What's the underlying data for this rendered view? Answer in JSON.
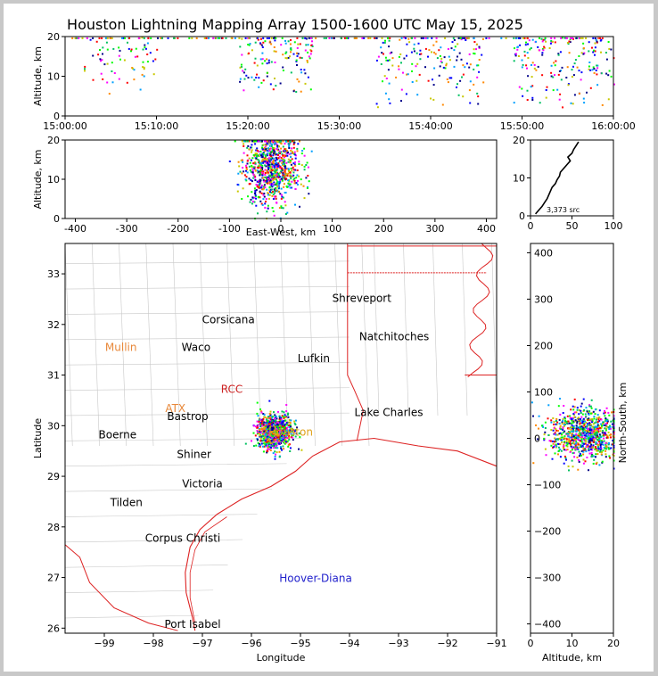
{
  "title": "Houston Lightning Mapping Array 1500-1600 UTC May 15, 2025",
  "chart_data": [
    {
      "id": "time_altitude",
      "type": "scatter",
      "ylabel": "Altitude, km",
      "xlim": [
        "15:00:00",
        "16:00:00"
      ],
      "ylim": [
        0,
        20
      ],
      "x_ticks": [
        "15:00:00",
        "15:10:00",
        "15:20:00",
        "15:30:00",
        "15:40:00",
        "15:50:00",
        "16:00:00"
      ],
      "y_ticks": [
        0,
        10,
        20
      ],
      "clusters": [
        {
          "t_start_min": 2,
          "t_end_min": 10,
          "alt_low": 5,
          "alt_high": 20,
          "density": 0.3
        },
        {
          "t_start_min": 19,
          "t_end_min": 27,
          "alt_low": 5,
          "alt_high": 20,
          "density": 0.6
        },
        {
          "t_start_min": 34,
          "t_end_min": 46,
          "alt_low": 2,
          "alt_high": 20,
          "density": 0.7
        },
        {
          "t_start_min": 49,
          "t_end_min": 60,
          "alt_low": 2,
          "alt_high": 20,
          "density": 0.8
        }
      ]
    },
    {
      "id": "eastwest_altitude",
      "type": "scatter",
      "xlabel": "East-West, km",
      "ylabel": "Altitude, km",
      "xlim": [
        -420,
        420
      ],
      "ylim": [
        0,
        20
      ],
      "x_ticks": [
        -400,
        -300,
        -200,
        -100,
        0,
        100,
        200,
        300,
        400
      ],
      "y_ticks": [
        0,
        10,
        20
      ],
      "cluster": {
        "x_center": -20,
        "x_spread": 45,
        "alt_low": 0,
        "alt_high": 20
      }
    },
    {
      "id": "altitude_histogram",
      "type": "line",
      "xlim": [
        0,
        100
      ],
      "ylim": [
        0,
        20
      ],
      "x_ticks": [
        0,
        50,
        100
      ],
      "y_ticks": [
        0,
        10,
        20
      ],
      "annotation": "3,373 src",
      "profile": [
        {
          "alt": 0.5,
          "count": 6
        },
        {
          "alt": 1.5,
          "count": 10
        },
        {
          "alt": 2.5,
          "count": 14
        },
        {
          "alt": 3.5,
          "count": 17
        },
        {
          "alt": 4.5,
          "count": 20
        },
        {
          "alt": 5.5,
          "count": 22
        },
        {
          "alt": 6.5,
          "count": 24
        },
        {
          "alt": 7.5,
          "count": 26
        },
        {
          "alt": 8.5,
          "count": 30
        },
        {
          "alt": 9.5,
          "count": 32
        },
        {
          "alt": 10.5,
          "count": 35
        },
        {
          "alt": 11.5,
          "count": 36
        },
        {
          "alt": 12.5,
          "count": 40
        },
        {
          "alt": 13.5,
          "count": 44
        },
        {
          "alt": 14.5,
          "count": 48
        },
        {
          "alt": 15.5,
          "count": 45
        },
        {
          "alt": 16.5,
          "count": 50
        },
        {
          "alt": 17.5,
          "count": 52
        },
        {
          "alt": 18.5,
          "count": 55
        },
        {
          "alt": 19.5,
          "count": 58
        }
      ]
    },
    {
      "id": "plan_view",
      "type": "scatter",
      "xlabel": "Longitude",
      "ylabel": "Latitude",
      "xlim": [
        -99.8,
        -91
      ],
      "ylim": [
        25.9,
        33.6
      ],
      "x_ticks": [
        -99,
        -98,
        -97,
        -96,
        -95,
        -94,
        -93,
        -92,
        -91
      ],
      "y_ticks": [
        26,
        27,
        28,
        29,
        30,
        31,
        32,
        33
      ],
      "cluster": {
        "lon_center": -95.55,
        "lat_center": 29.9,
        "lon_spread": 0.35,
        "lat_spread": 0.32
      },
      "cities": [
        {
          "name": "Shreveport",
          "lon": -93.75,
          "lat": 32.52,
          "color": "#000000"
        },
        {
          "name": "Corsicana",
          "lon": -96.47,
          "lat": 32.09,
          "color": "#000000"
        },
        {
          "name": "Mullin",
          "lon": -98.66,
          "lat": 31.55,
          "color": "#e8883a"
        },
        {
          "name": "Waco",
          "lon": -97.13,
          "lat": 31.55,
          "color": "#000000"
        },
        {
          "name": "Natchitoches",
          "lon": -93.09,
          "lat": 31.76,
          "color": "#000000"
        },
        {
          "name": "Lufkin",
          "lon": -94.73,
          "lat": 31.33,
          "color": "#000000"
        },
        {
          "name": "RCC",
          "lon": -96.4,
          "lat": 30.72,
          "color": "#cc2222"
        },
        {
          "name": "ATX",
          "lon": -97.55,
          "lat": 30.34,
          "color": "#e8883a"
        },
        {
          "name": "Bastrop",
          "lon": -97.3,
          "lat": 30.18,
          "color": "#000000"
        },
        {
          "name": "Lake Charles",
          "lon": -93.2,
          "lat": 30.26,
          "color": "#000000"
        },
        {
          "name": "Boerne",
          "lon": -98.73,
          "lat": 29.82,
          "color": "#000000"
        },
        {
          "name": "Houston",
          "lon": -95.2,
          "lat": 29.87,
          "color": "#e0a21a"
        },
        {
          "name": "Shiner",
          "lon": -97.17,
          "lat": 29.43,
          "color": "#000000"
        },
        {
          "name": "Victoria",
          "lon": -97.0,
          "lat": 28.85,
          "color": "#000000"
        },
        {
          "name": "Tilden",
          "lon": -98.55,
          "lat": 28.48,
          "color": "#000000"
        },
        {
          "name": "Corpus Christi",
          "lon": -97.4,
          "lat": 27.78,
          "color": "#000000"
        },
        {
          "name": "Hoover-Diana",
          "lon": -94.69,
          "lat": 26.98,
          "color": "#2222cc"
        },
        {
          "name": "Port Isabel",
          "lon": -97.2,
          "lat": 26.08,
          "color": "#000000"
        }
      ]
    },
    {
      "id": "altitude_northsouth",
      "type": "scatter",
      "xlabel": "Altitude, km",
      "ylabel": "North-South, km",
      "xlim": [
        0,
        20
      ],
      "ylim": [
        -420,
        420
      ],
      "x_ticks": [
        0,
        10,
        20
      ],
      "y_ticks": [
        -400,
        -300,
        -200,
        -100,
        0,
        100,
        200,
        300,
        400
      ],
      "cluster": {
        "ns_center": 10,
        "ns_spread": 45,
        "alt_low": 0,
        "alt_high": 20
      }
    }
  ]
}
